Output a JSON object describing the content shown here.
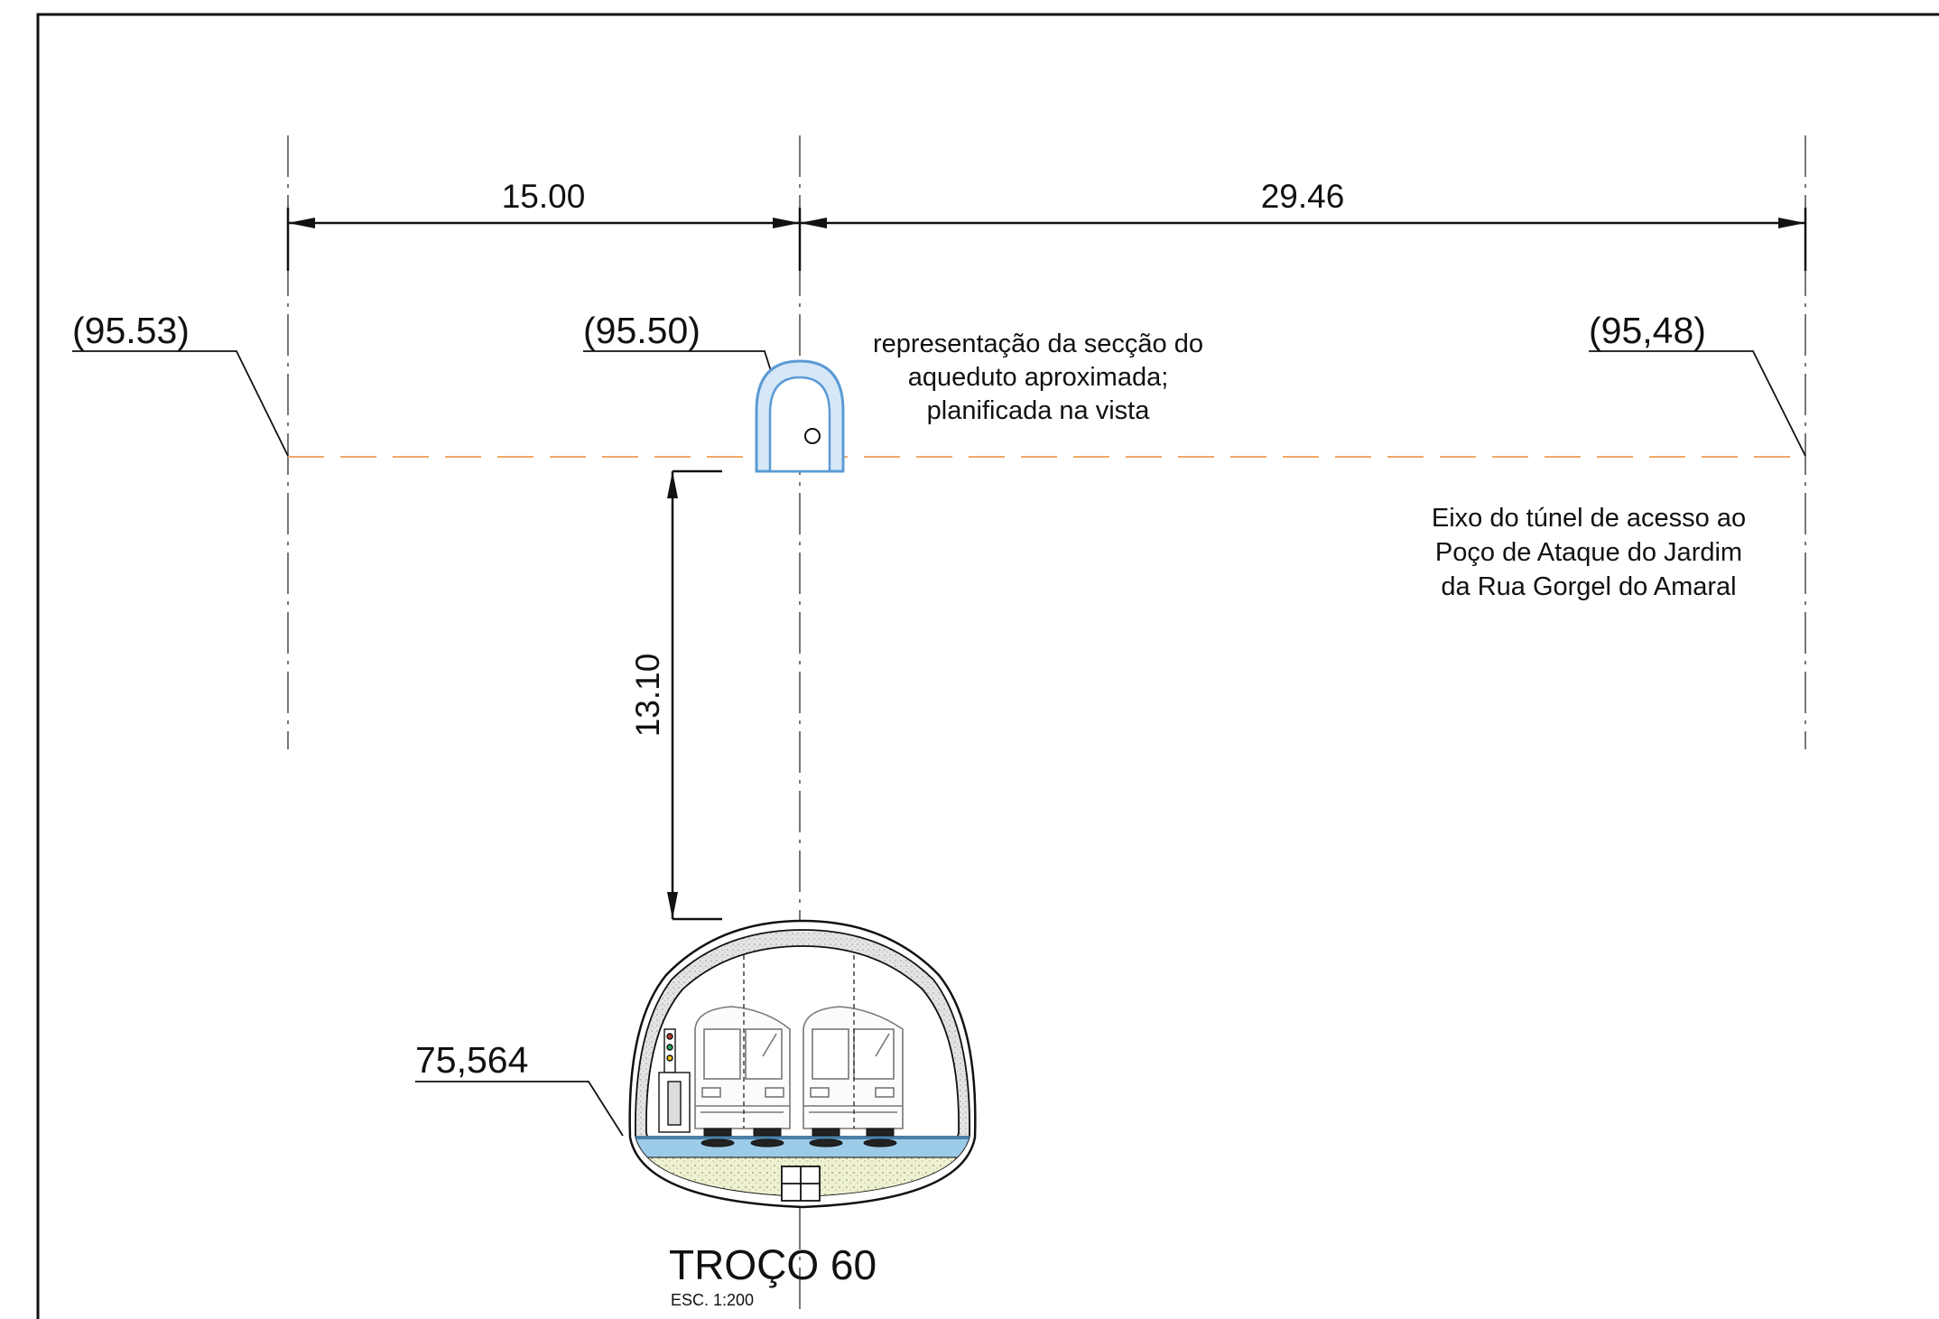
{
  "dimensions": {
    "left_span": "15.00",
    "right_span": "29.46",
    "vertical_depth": "13.10"
  },
  "elevations": {
    "left": "(95.53)",
    "center": "(95.50)",
    "right": "(95,48)",
    "rail_level": "75,564"
  },
  "notes": {
    "aqueduct": [
      "representação da secção do",
      "aqueduto aproximada;",
      "planificada na vista"
    ],
    "tunnel_axis": [
      "Eixo  do túnel de acesso ao",
      "Poço de Ataque do Jardim",
      "da Rua Gorgel do Amaral"
    ]
  },
  "section": {
    "title": "TROÇO 60",
    "scale": "ESC. 1:200"
  },
  "colors": {
    "line": "#111111",
    "axis_dashed": "#f0a868",
    "aqueduct": "#5b9bd5",
    "aqueduct_fill": "#d6e8f7",
    "concrete": "#d9d9d9",
    "ballast": "#e6e8c8",
    "water": "#7db9e0"
  }
}
